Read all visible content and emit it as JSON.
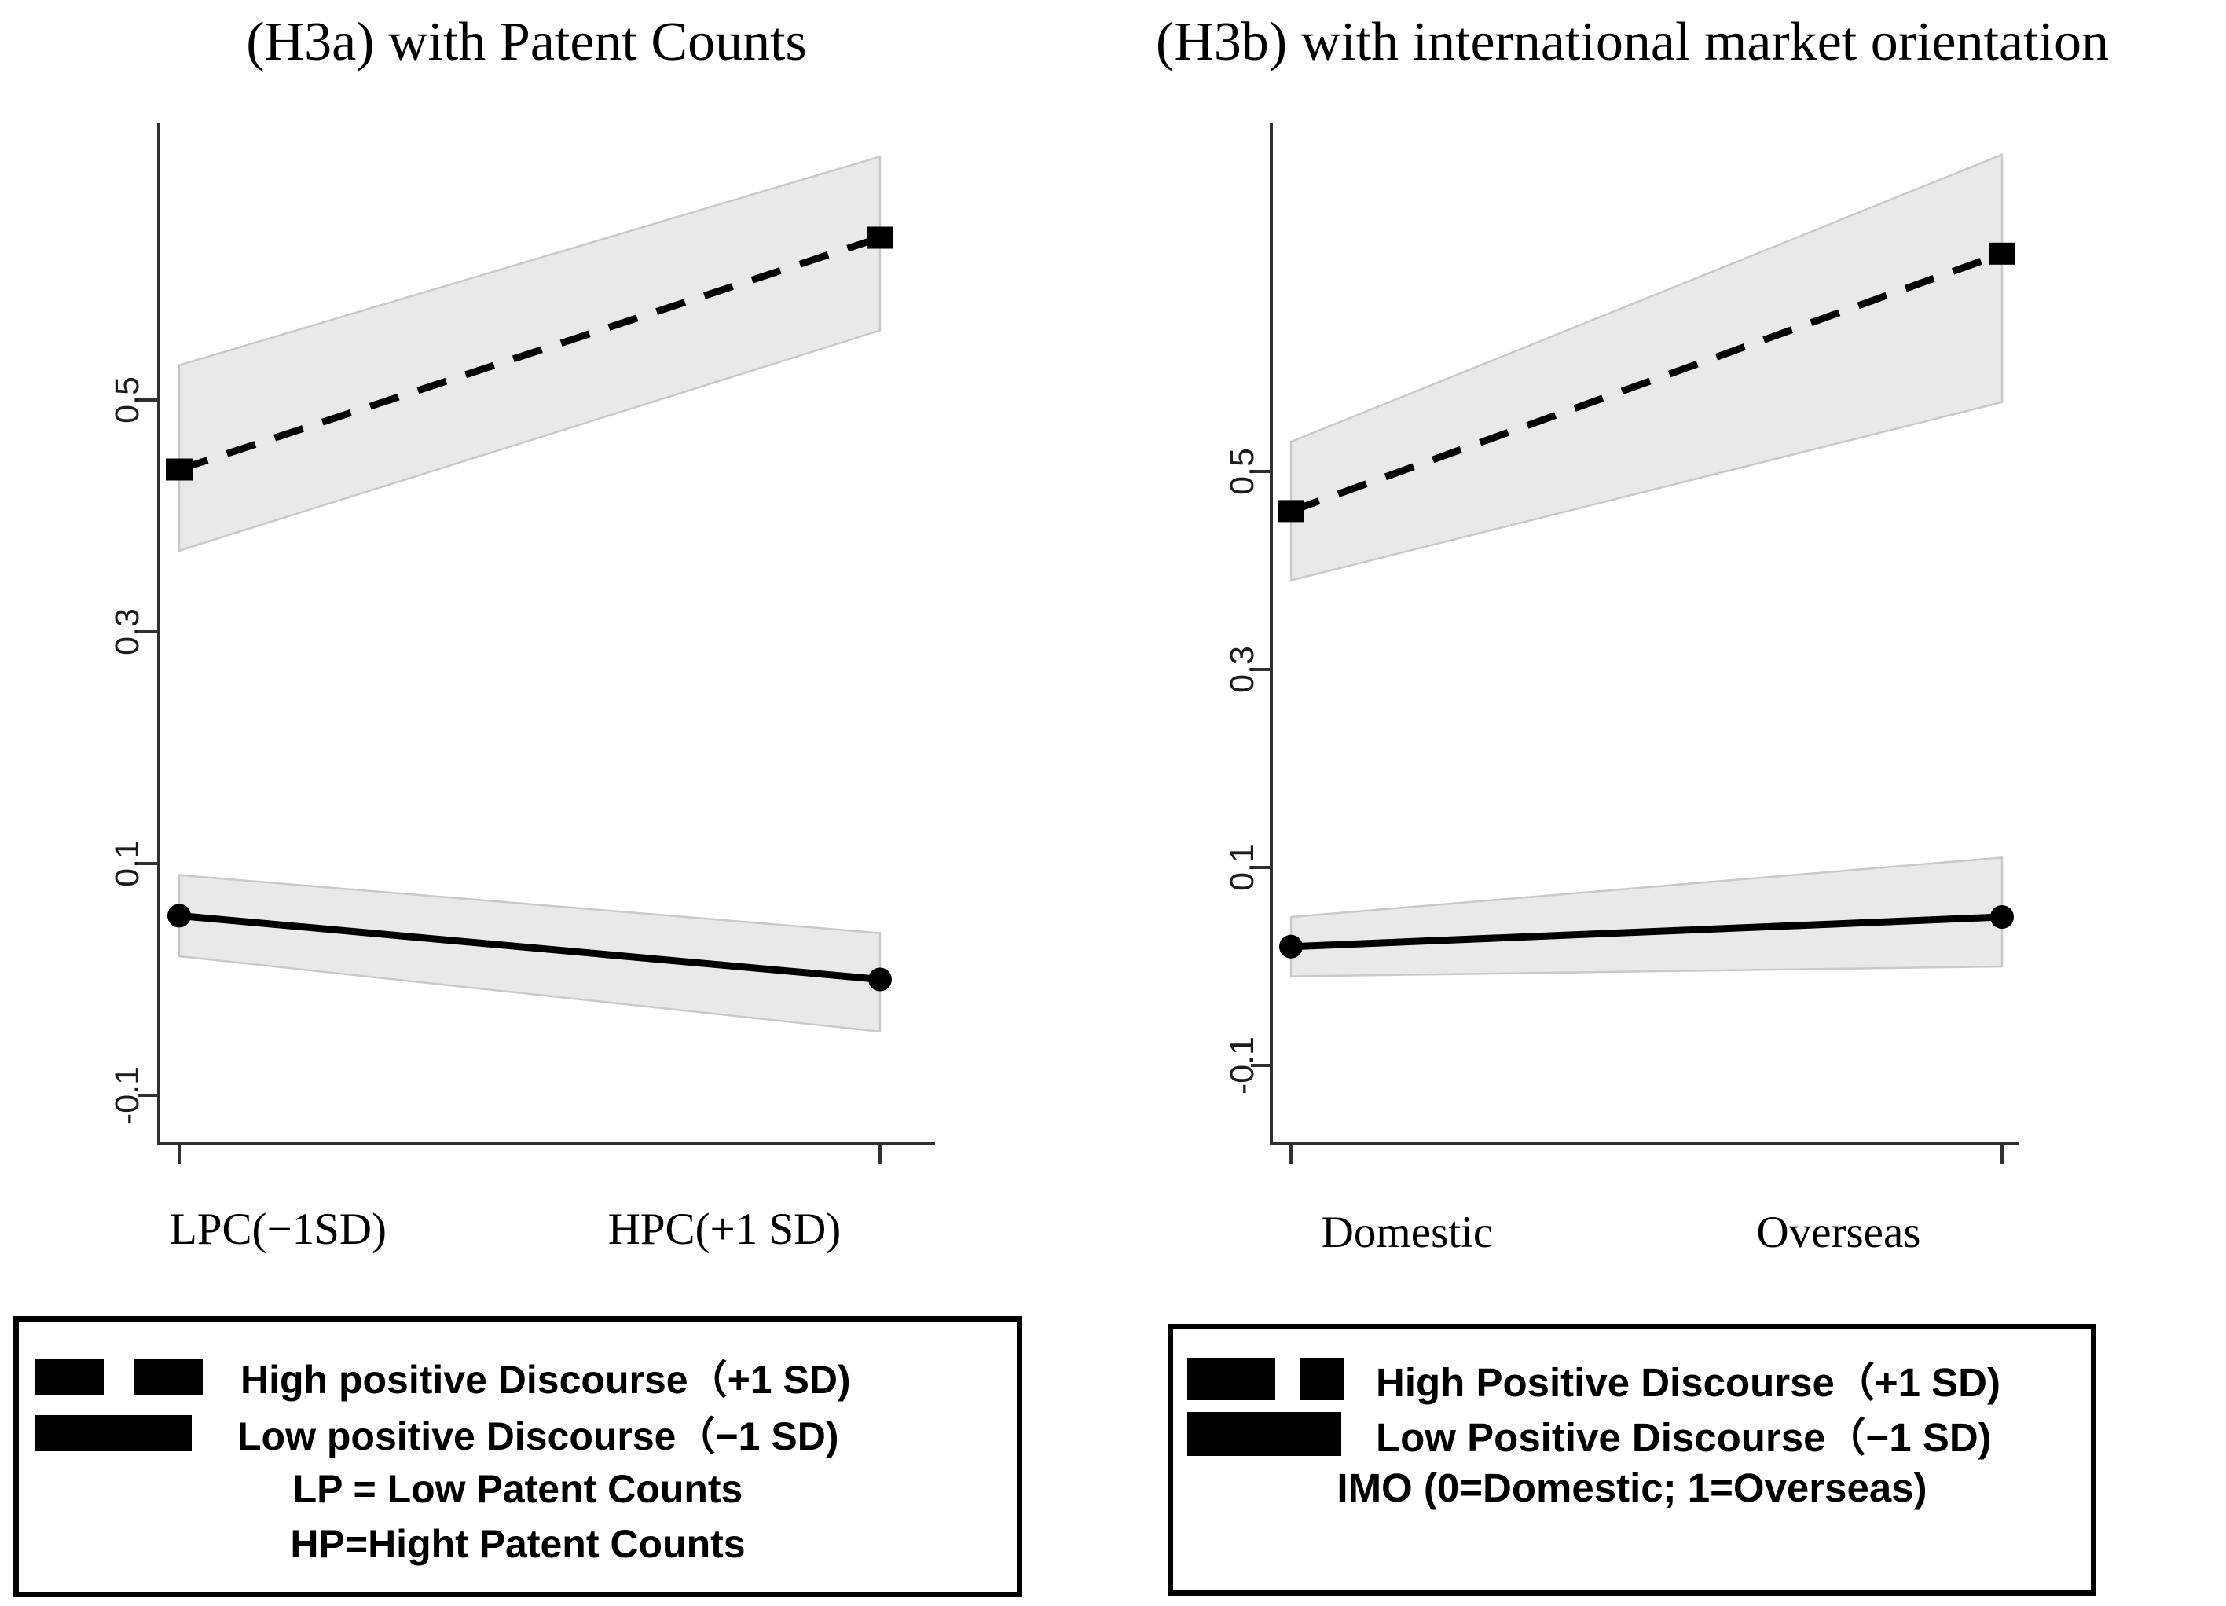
{
  "figure": {
    "background": "#ffffff",
    "description_left_panel_title": "(H3a) with Patent Counts",
    "description_right_panel_title": "(H3b) with international market orientation"
  },
  "colors": {
    "series_line": "#000000",
    "ci_fill": "#e9e9e9",
    "ci_edge": "#c9c9c9",
    "axis": "#303030",
    "text": "#000000",
    "legend_border": "#000000",
    "background": "#ffffff"
  },
  "chart_data": [
    {
      "type": "line",
      "title": "(H3a) with Patent Counts",
      "categories": [
        "LPC(−1SD)",
        "HPC(+1 SD)"
      ],
      "xlabel": "",
      "ylabel": "",
      "ylim": [
        -0.15,
        0.74
      ],
      "yticks": [
        0.5,
        0.3,
        0.1,
        -0.1
      ],
      "ytick_labels": [
        "0.5",
        "0.3",
        "0.1",
        "-0.1"
      ],
      "grid": false,
      "legend_position": "bottom-box",
      "series": [
        {
          "name": "High positive Discourse（+1 SD)",
          "style": "dashed",
          "marker": "square",
          "values": [
            0.44,
            0.64
          ],
          "ci_upper": [
            0.53,
            0.71
          ],
          "ci_lower": [
            0.37,
            0.56
          ]
        },
        {
          "name": "Low positive Discourse（−1 SD)",
          "style": "solid",
          "marker": "circle",
          "values": [
            0.055,
            0.0
          ],
          "ci_upper": [
            0.09,
            0.04
          ],
          "ci_lower": [
            0.02,
            -0.045
          ]
        }
      ],
      "legend_notes": [
        "LP = Low Patent Counts",
        "HP=Hight Patent Counts"
      ]
    },
    {
      "type": "line",
      "title": "(H3b) with international market orientation",
      "categories": [
        "Domestic",
        "Overseas"
      ],
      "xlabel": "",
      "ylabel": "",
      "ylim": [
        -0.18,
        0.85
      ],
      "yticks": [
        0.5,
        0.3,
        0.1,
        -0.1
      ],
      "ytick_labels": [
        "0.5",
        "0.3",
        "0.1",
        "-0.1"
      ],
      "grid": false,
      "legend_position": "bottom-box",
      "series": [
        {
          "name": "High Positive Discourse（+1 SD)",
          "style": "dashed",
          "marker": "square",
          "values": [
            0.46,
            0.72
          ],
          "ci_upper": [
            0.53,
            0.82
          ],
          "ci_lower": [
            0.39,
            0.57
          ]
        },
        {
          "name": "Low Positive Discourse（−1 SD)",
          "style": "solid",
          "marker": "circle",
          "values": [
            0.02,
            0.05
          ],
          "ci_upper": [
            0.05,
            0.11
          ],
          "ci_lower": [
            -0.01,
            0.0
          ]
        }
      ],
      "legend_notes": [
        "IMO (0=Domestic; 1=Overseas)"
      ]
    }
  ]
}
